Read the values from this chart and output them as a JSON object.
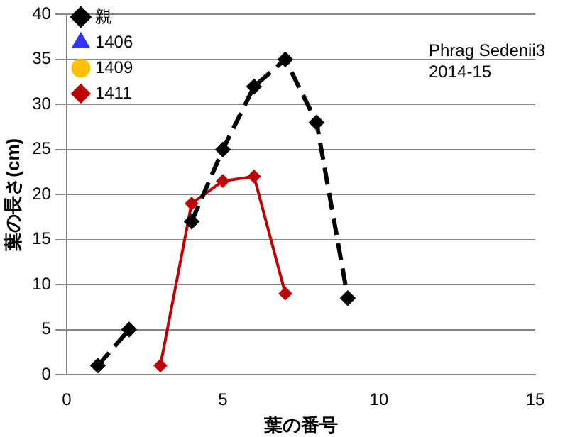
{
  "chart_data": {
    "type": "line",
    "xlabel": "葉の番号",
    "ylabel": "葉の長さ(cm)",
    "xlim": [
      0,
      15
    ],
    "xticks": [
      0,
      5,
      10,
      15
    ],
    "ylim": [
      0,
      40
    ],
    "yticks": [
      0,
      5,
      10,
      15,
      20,
      25,
      30,
      35,
      40
    ],
    "grid": "y",
    "legend": "top left",
    "annotations": [
      "Phrag Sedenii3",
      "2014-15"
    ],
    "series": [
      {
        "name": "親",
        "color": "#000000",
        "marker": "diamond",
        "line_style": "dashed",
        "x": [
          1,
          2,
          3,
          4,
          5,
          6,
          7,
          8,
          9
        ],
        "values": [
          1,
          5,
          null,
          17,
          25,
          32,
          35,
          28,
          8.5
        ]
      },
      {
        "name": "1406",
        "color": "#3333ff",
        "marker": "triangle"
      },
      {
        "name": "1409",
        "color": "#ffc000",
        "marker": "circle"
      },
      {
        "name": "1411",
        "color": "#c00000",
        "marker": "diamond",
        "x": [
          3,
          4,
          5,
          6,
          7
        ],
        "values": [
          1,
          19,
          21.5,
          22,
          9
        ]
      }
    ]
  }
}
